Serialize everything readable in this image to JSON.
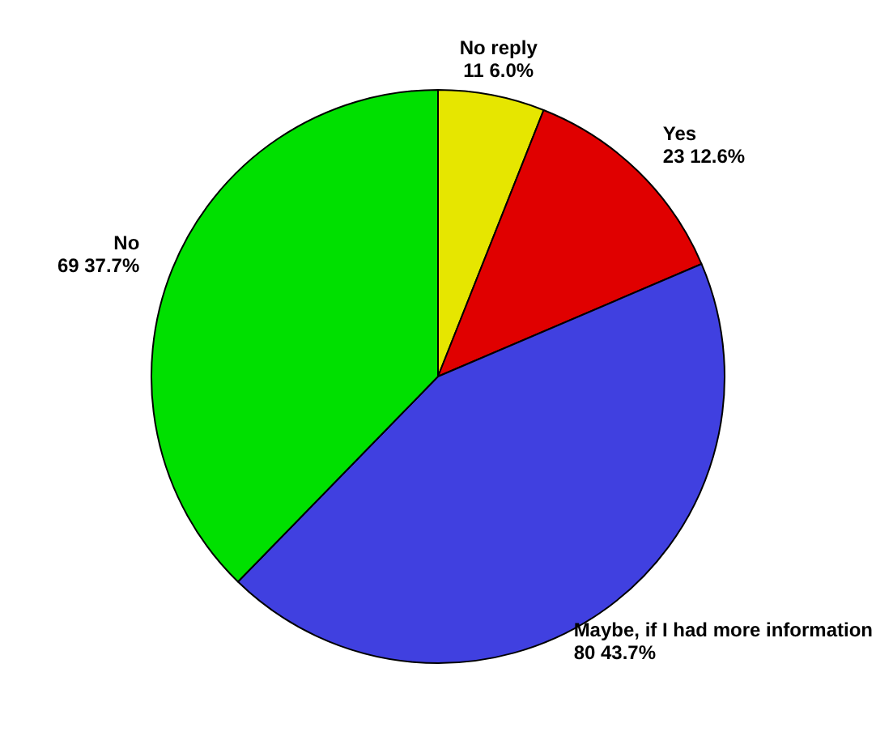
{
  "chart_data": {
    "type": "pie",
    "categories": [
      "No reply",
      "Yes",
      "Maybe, if I had more information",
      "No"
    ],
    "values": [
      11,
      23,
      80,
      69
    ],
    "colors": [
      "#e6e600",
      "#e00000",
      "#4040e0",
      "#00e000"
    ],
    "value_labels": [
      "11\n6.0%",
      "23\n12.6%",
      "80\n43.7%",
      "69\n37.7%"
    ],
    "legend": false
  }
}
